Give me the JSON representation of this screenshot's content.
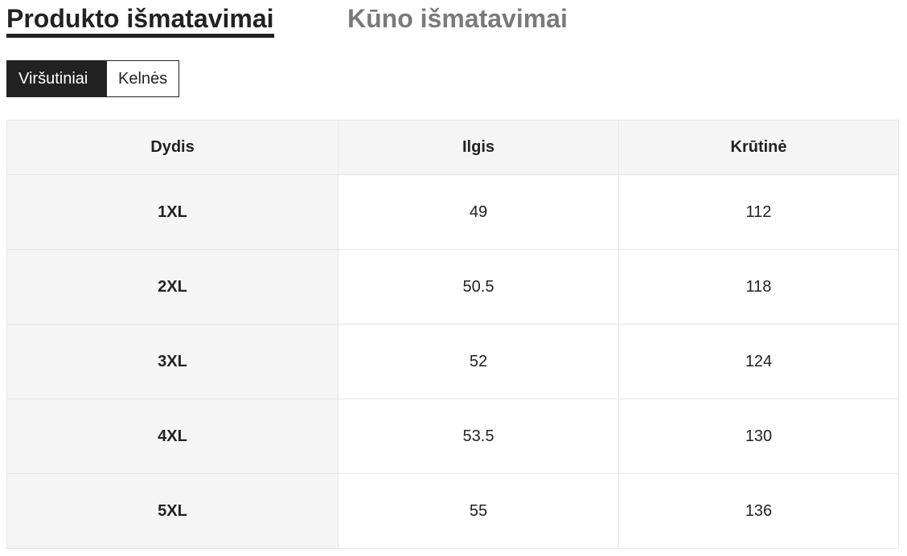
{
  "tabs": [
    {
      "label": "Produkto išmatavimai",
      "active": true
    },
    {
      "label": "Kūno išmatavimai",
      "active": false
    }
  ],
  "segments": [
    {
      "label": "Viršutiniai",
      "active": true
    },
    {
      "label": "Kelnės",
      "active": false
    }
  ],
  "table": {
    "headers": [
      "Dydis",
      "Ilgis",
      "Krūtinė"
    ],
    "rows": [
      [
        "1XL",
        "49",
        "112"
      ],
      [
        "2XL",
        "50.5",
        "118"
      ],
      [
        "3XL",
        "52",
        "124"
      ],
      [
        "4XL",
        "53.5",
        "130"
      ],
      [
        "5XL",
        "55",
        "136"
      ]
    ]
  }
}
